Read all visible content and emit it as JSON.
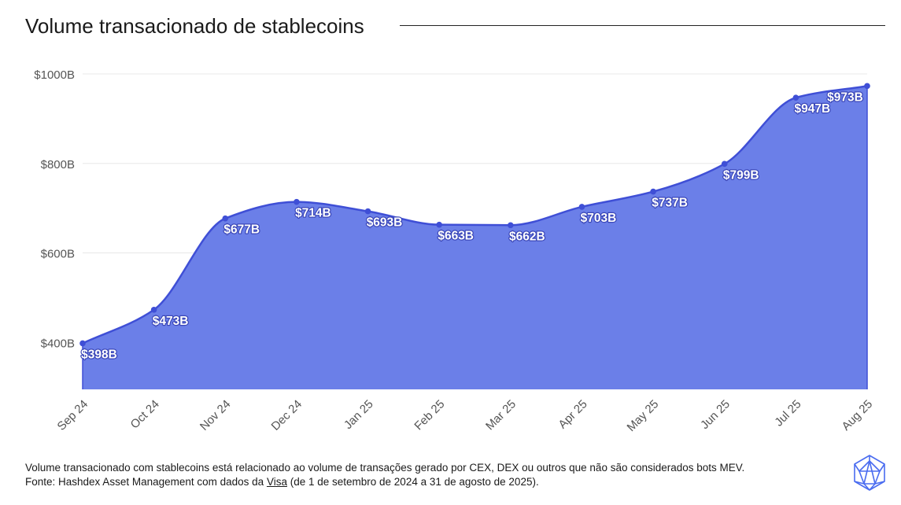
{
  "title": "Volume transacionado de stablecoins",
  "chart_data": {
    "type": "area",
    "title": "Volume transacionado de stablecoins",
    "xlabel": "",
    "ylabel": "",
    "categories": [
      "Sep 24",
      "Oct 24",
      "Nov 24",
      "Dec 24",
      "Jan 25",
      "Feb 25",
      "Mar 25",
      "Apr 25",
      "May 25",
      "Jun 25",
      "Jul 25",
      "Aug 25"
    ],
    "values": [
      398,
      473,
      677,
      714,
      693,
      663,
      662,
      703,
      737,
      799,
      947,
      973
    ],
    "data_labels": [
      "$398B",
      "$473B",
      "$677B",
      "$714B",
      "$693B",
      "$663B",
      "$662B",
      "$703B",
      "$737B",
      "$799B",
      "$947B",
      "$973B"
    ],
    "yticks": [
      400,
      600,
      800,
      1000
    ],
    "ytick_labels": [
      "$400B",
      "$600B",
      "$800B",
      "$1000B"
    ],
    "ylim": [
      295,
      1000
    ],
    "grid": true,
    "legend": "none",
    "colors": {
      "fill": "#6b7fe8",
      "line": "#3f4fd6",
      "marker": "#3f4fd6",
      "label_text": "#ffffff",
      "label_outline": "#3b47b8",
      "grid": "#e8e8e8",
      "axis": "#3f4fd6",
      "tick_text": "#555555"
    }
  },
  "footer": {
    "note": "Volume transacionado com stablecoins está relacionado ao volume de transações gerado por CEX, DEX ou outros que não são considerados bots MEV.",
    "source_prefix": "Fonte: Hashdex Asset Management com dados da ",
    "source_link": "Visa",
    "source_suffix": " (de 1 de setembro de 2024 a 31 de agosto de 2025)."
  },
  "logo": {
    "icon": "hashdex-logo-icon",
    "color": "#4a6cf0"
  }
}
